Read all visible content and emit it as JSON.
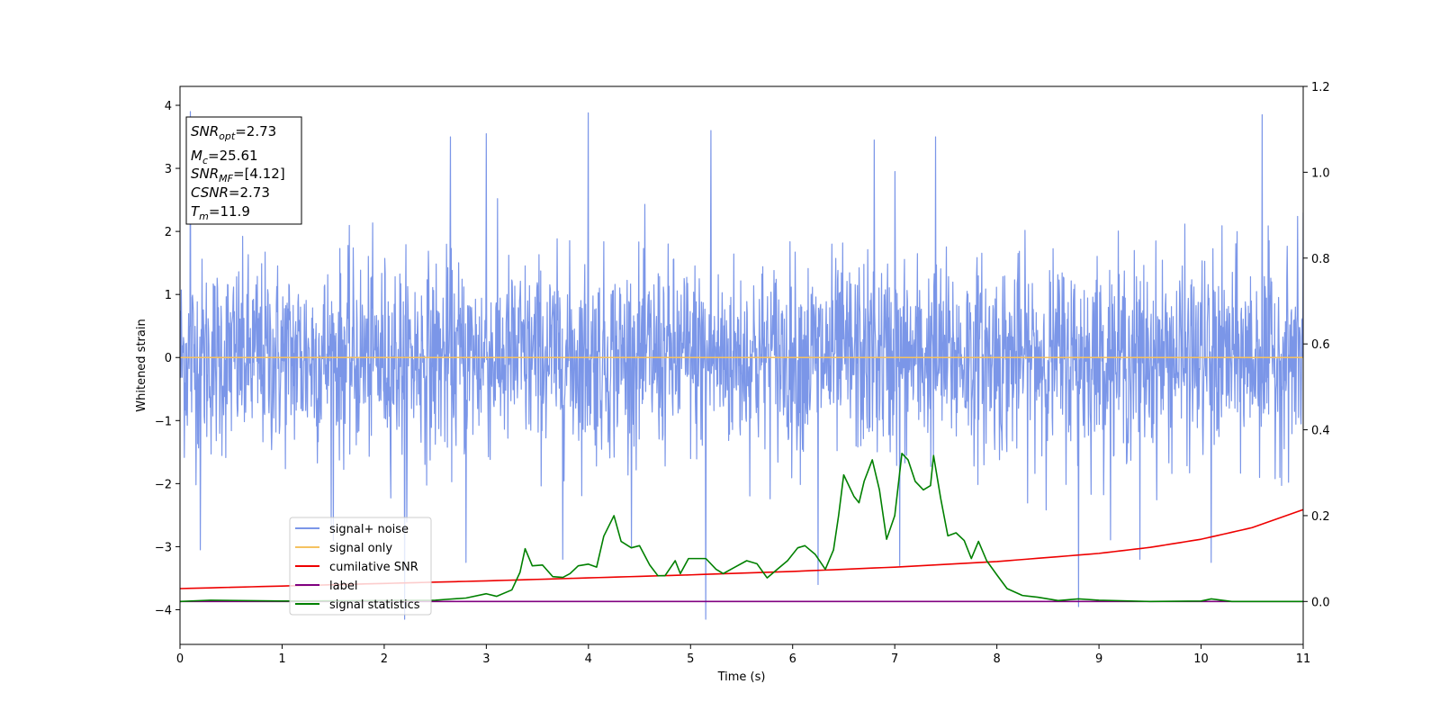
{
  "chart_data": {
    "type": "line",
    "title": "",
    "xlabel": "Time (s)",
    "ylabel": "Whitened strain",
    "xlim": [
      0,
      11
    ],
    "ylim": [
      -4.55,
      4.3
    ],
    "y2lim": [
      -0.1,
      1.2
    ],
    "x_ticks": [
      "0",
      "1",
      "2",
      "3",
      "4",
      "5",
      "6",
      "7",
      "8",
      "9",
      "10",
      "11"
    ],
    "y_ticks": [
      "4",
      "3",
      "2",
      "1",
      "0",
      "−1",
      "−2",
      "−3",
      "−4"
    ],
    "y2_ticks": [
      "1.2",
      "1.0",
      "0.8",
      "0.6",
      "0.4",
      "0.2",
      "0.0"
    ],
    "grid": false,
    "legend_position": "lower-left",
    "annotation": {
      "snr_opt": {
        "label": "SNR",
        "sub": "opt",
        "value": "=2.73"
      },
      "mc": {
        "label": "M",
        "sub": "c",
        "value": "=25.61"
      },
      "snr_mf": {
        "label": "SNR",
        "sub": "MF",
        "value": "=[4.12]"
      },
      "csnr": {
        "label": "CSNR",
        "sub": "",
        "value": "=2.73"
      },
      "tm": {
        "label": "T",
        "sub": "m",
        "value": "=11.9"
      }
    },
    "series": [
      {
        "name": "signal+ noise",
        "axis": "left",
        "color": "#7b96e8",
        "kind": "noise",
        "amplitude_typical": 2.0,
        "peak_x": [
          0.1,
          2.2,
          2.65,
          3.0,
          4.0,
          5.2,
          6.8,
          7.0,
          7.4,
          8.8,
          10.6,
          11.0
        ],
        "peak_y": [
          3.9,
          3.2,
          3.5,
          3.55,
          3.88,
          3.6,
          3.45,
          2.95,
          3.5,
          3.1,
          3.85,
          2.3
        ],
        "trough_x": [
          0.2,
          1.5,
          2.2,
          2.8,
          3.75,
          5.15,
          6.25,
          7.05,
          8.8,
          9.4,
          10.1
        ],
        "trough_y": [
          -3.05,
          -2.9,
          -4.15,
          -3.25,
          -3.2,
          -4.15,
          -3.6,
          -3.3,
          -3.95,
          -3.2,
          -3.25
        ]
      },
      {
        "name": "signal only",
        "axis": "left",
        "color": "#f5c260",
        "x": [
          0,
          11
        ],
        "y": [
          0,
          0
        ]
      },
      {
        "name": "cumilative SNR",
        "axis": "right",
        "color": "#ee0000",
        "x": [
          0,
          1,
          2,
          3,
          4,
          5,
          6,
          7,
          8,
          9,
          9.5,
          10,
          10.5,
          11
        ],
        "y": [
          0.03,
          0.036,
          0.042,
          0.048,
          0.055,
          0.062,
          0.07,
          0.08,
          0.093,
          0.112,
          0.126,
          0.145,
          0.172,
          0.214
        ]
      },
      {
        "name": "label",
        "axis": "right",
        "color": "#800080",
        "x": [
          0,
          11
        ],
        "y": [
          0,
          0
        ]
      },
      {
        "name": "signal statistics",
        "axis": "right",
        "color": "#008000",
        "x": [
          0,
          0.3,
          1,
          2,
          2.5,
          2.8,
          3.0,
          3.1,
          3.25,
          3.33,
          3.38,
          3.45,
          3.55,
          3.65,
          3.75,
          3.82,
          3.9,
          4.0,
          4.08,
          4.15,
          4.25,
          4.32,
          4.42,
          4.5,
          4.6,
          4.68,
          4.75,
          4.85,
          4.9,
          4.98,
          5.05,
          5.15,
          5.25,
          5.32,
          5.42,
          5.55,
          5.65,
          5.75,
          5.85,
          5.95,
          6.05,
          6.12,
          6.22,
          6.32,
          6.4,
          6.45,
          6.5,
          6.6,
          6.65,
          6.7,
          6.78,
          6.85,
          6.92,
          7.0,
          7.07,
          7.13,
          7.2,
          7.28,
          7.35,
          7.38,
          7.45,
          7.52,
          7.6,
          7.68,
          7.75,
          7.82,
          7.9,
          8.0,
          8.1,
          8.25,
          8.4,
          8.6,
          8.8,
          9.0,
          9.5,
          10.0,
          10.1,
          10.3,
          11.0
        ],
        "y": [
          0.0,
          0.003,
          0.001,
          0.002,
          0.003,
          0.008,
          0.018,
          0.012,
          0.027,
          0.068,
          0.123,
          0.083,
          0.085,
          0.058,
          0.056,
          0.065,
          0.083,
          0.087,
          0.08,
          0.152,
          0.2,
          0.14,
          0.125,
          0.13,
          0.085,
          0.06,
          0.06,
          0.095,
          0.065,
          0.1,
          0.1,
          0.1,
          0.075,
          0.065,
          0.078,
          0.095,
          0.088,
          0.055,
          0.075,
          0.095,
          0.125,
          0.13,
          0.11,
          0.075,
          0.12,
          0.2,
          0.295,
          0.245,
          0.23,
          0.28,
          0.33,
          0.26,
          0.145,
          0.2,
          0.345,
          0.33,
          0.28,
          0.26,
          0.27,
          0.34,
          0.24,
          0.153,
          0.16,
          0.142,
          0.1,
          0.14,
          0.095,
          0.062,
          0.03,
          0.014,
          0.01,
          0.002,
          0.006,
          0.003,
          0.0,
          0.001,
          0.006,
          0.0,
          0.0
        ]
      }
    ]
  }
}
